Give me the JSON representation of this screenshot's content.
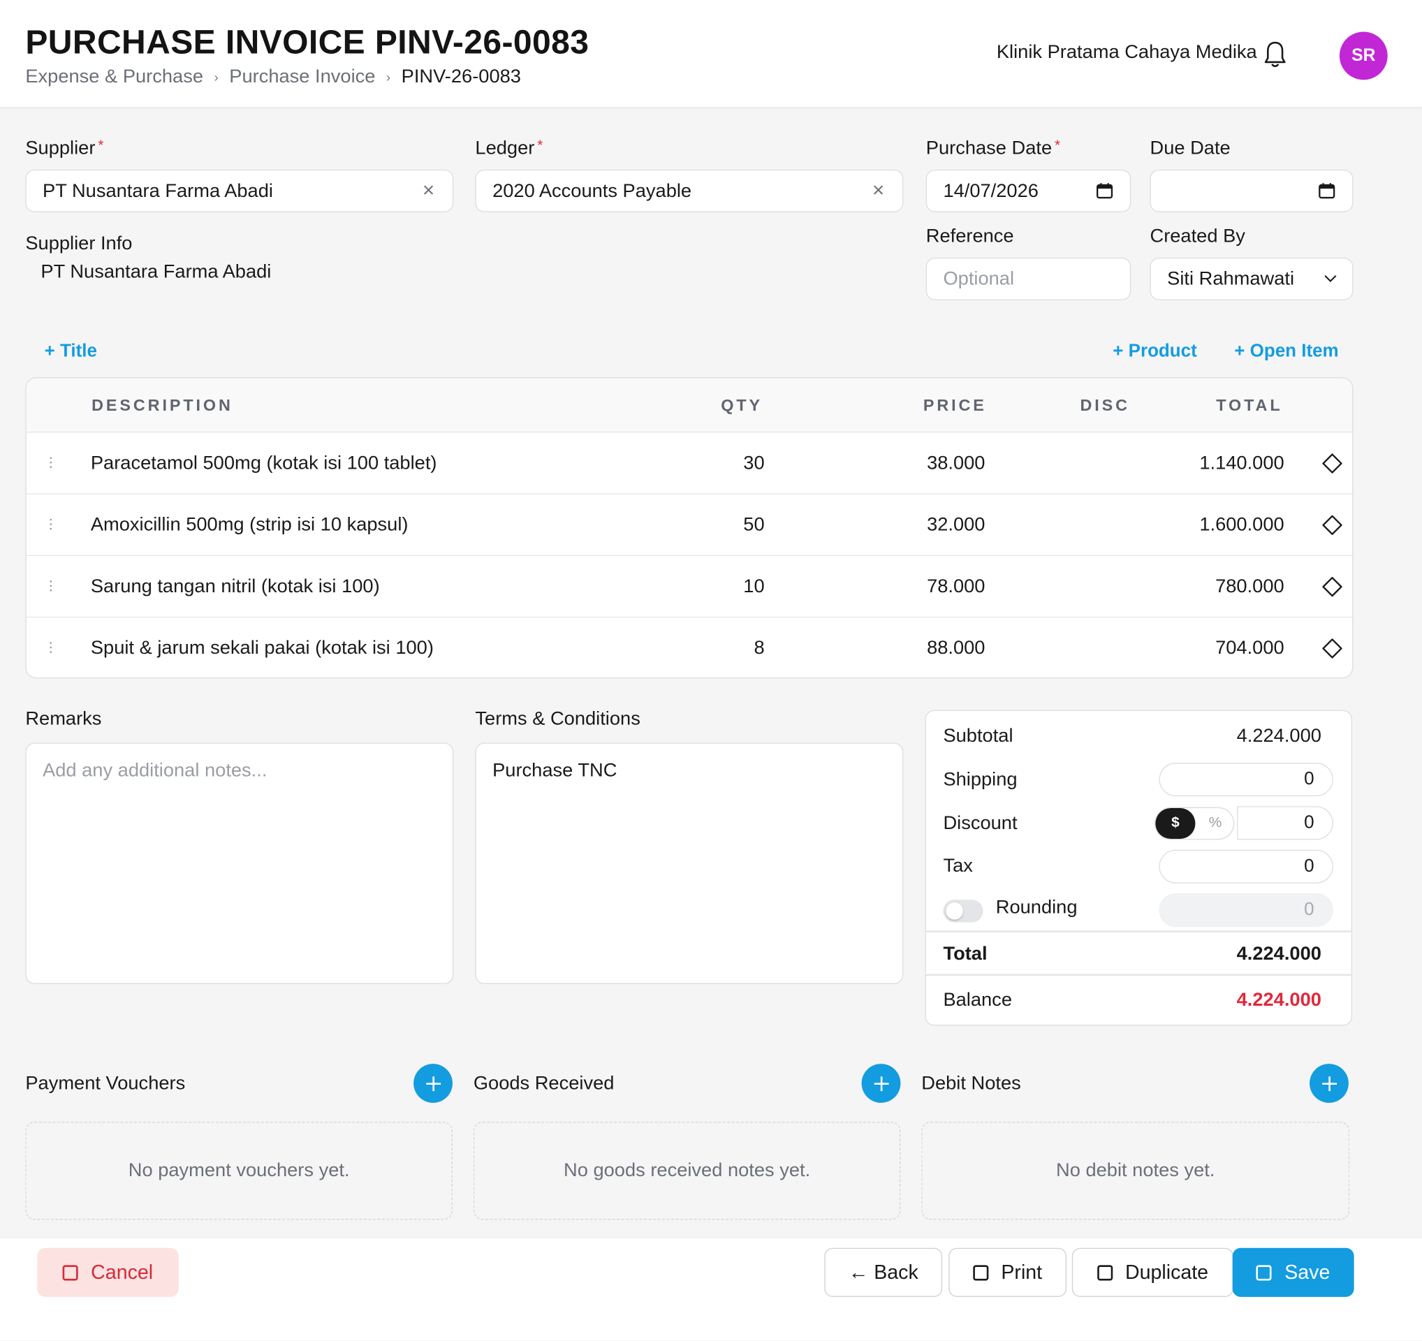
{
  "header": {
    "title": "PURCHASE INVOICE PINV-26-0083",
    "breadcrumb": [
      "Expense & Purchase",
      "Purchase Invoice",
      "PINV-26-0083"
    ],
    "clinic": "Klinik Pratama Cahaya Medika",
    "avatar_initials": "SR",
    "avatar_color": "#c227d6"
  },
  "form": {
    "supplier_label": "Supplier",
    "supplier_value": "PT Nusantara Farma Abadi",
    "ledger_label": "Ledger",
    "ledger_value": "2020 Accounts Payable",
    "purchase_date_label": "Purchase Date",
    "purchase_date_value": "14/07/2026",
    "due_date_label": "Due Date",
    "due_date_value": "",
    "supplier_info_label": "Supplier Info",
    "supplier_info_value": "PT Nusantara Farma Abadi",
    "reference_label": "Reference",
    "reference_placeholder": "Optional",
    "created_by_label": "Created By",
    "created_by_value": "Siti Rahmawati",
    "required_mark": "*"
  },
  "actions": {
    "add_title": "+ Title",
    "add_product": "+ Product",
    "add_open_item": "+ Open Item"
  },
  "items": {
    "columns": [
      "DESCRIPTION",
      "QTY",
      "PRICE",
      "DISC",
      "TOTAL"
    ],
    "rows": [
      {
        "description": "Paracetamol 500mg (kotak isi 100 tablet)",
        "qty": "30",
        "price": "38.000",
        "disc": "",
        "total": "1.140.000"
      },
      {
        "description": "Amoxicillin 500mg (strip isi 10 kapsul)",
        "qty": "50",
        "price": "32.000",
        "disc": "",
        "total": "1.600.000"
      },
      {
        "description": "Sarung tangan nitril (kotak isi 100)",
        "qty": "10",
        "price": "78.000",
        "disc": "",
        "total": "780.000"
      },
      {
        "description": "Spuit & jarum sekali pakai (kotak isi 100)",
        "qty": "8",
        "price": "88.000",
        "disc": "",
        "total": "704.000"
      }
    ]
  },
  "notes": {
    "remarks_label": "Remarks",
    "remarks_placeholder": "Add any additional notes...",
    "terms_label": "Terms & Conditions",
    "terms_value": "Purchase TNC"
  },
  "summary": {
    "subtotal_label": "Subtotal",
    "subtotal_value": "4.224.000",
    "shipping_label": "Shipping",
    "shipping_value": "0",
    "discount_label": "Discount",
    "discount_mode_on": "$",
    "discount_mode_off": "%",
    "discount_value": "0",
    "tax_label": "Tax",
    "tax_value": "0",
    "rounding_label": "Rounding",
    "rounding_value": "0",
    "total_label": "Total",
    "total_value": "4.224.000",
    "balance_label": "Balance",
    "balance_value": "4.224.000",
    "balance_color": "#e0283a"
  },
  "related": {
    "payment_vouchers_label": "Payment Vouchers",
    "payment_vouchers_empty": "No payment vouchers yet.",
    "goods_received_label": "Goods Received",
    "goods_received_empty": "No goods received notes yet.",
    "debit_notes_label": "Debit Notes",
    "debit_notes_empty": "No debit notes yet."
  },
  "footer": {
    "cancel": "Cancel",
    "back": "← Back",
    "print": "Print",
    "duplicate": "Duplicate",
    "save": "Save",
    "accent": "#139ce0"
  }
}
